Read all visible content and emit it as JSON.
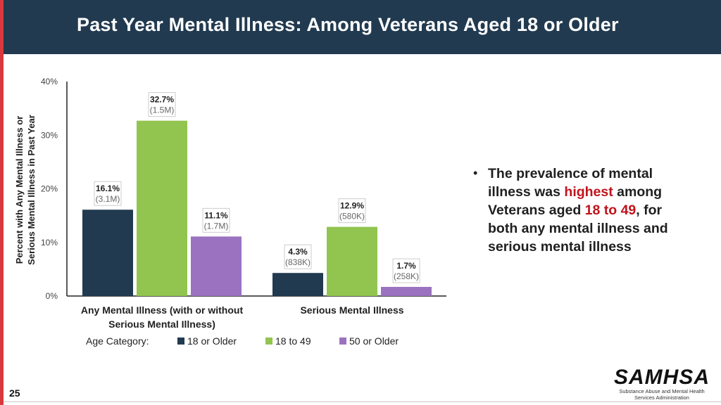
{
  "slide": {
    "title": "Past Year Mental Illness: Among Veterans Aged 18 or Older",
    "page_number": "25",
    "bullet": {
      "pre": "The prevalence of mental illness was ",
      "hl1": "highest",
      "mid": " among Veterans aged ",
      "hl2": "18 to 49",
      "post": ", for both any mental illness and serious mental illness"
    },
    "logo": {
      "mark": "SAMHSA",
      "line1": "Substance Abuse and Mental Health",
      "line2": "Services Administration"
    },
    "colors": {
      "header": "#213a50",
      "accent": "#d9393e",
      "highlight": "#c0141c"
    }
  },
  "chart_data": {
    "type": "bar",
    "title": "",
    "xlabel": "",
    "ylabel": "Percent with Any Mental Illness or Serious Mental Illness in Past Year",
    "ylabel_lines": [
      "Percent with Any Mental Illness or",
      "Serious Mental Illness in Past Year"
    ],
    "ylim": [
      0,
      40
    ],
    "yticks": [
      {
        "value": 0,
        "label": "0%"
      },
      {
        "value": 10,
        "label": "10%"
      },
      {
        "value": 20,
        "label": "20%"
      },
      {
        "value": 30,
        "label": "30%"
      },
      {
        "value": 40,
        "label": "40%"
      }
    ],
    "categories": [
      {
        "lines": [
          "Any Mental Illness (with or without",
          "Serious Mental Illness)"
        ]
      },
      {
        "lines": [
          "Serious Mental Illness"
        ]
      }
    ],
    "legend_title": "Age Category:",
    "series": [
      {
        "name": "18 or Older",
        "color": "#213a50",
        "values": [
          16.1,
          4.3
        ],
        "labels": [
          "16.1%",
          "4.3%"
        ],
        "counts": [
          "(3.1M)",
          "(838K)"
        ]
      },
      {
        "name": "18 to 49",
        "color": "#92c54f",
        "values": [
          32.7,
          12.9
        ],
        "labels": [
          "32.7%",
          "12.9%"
        ],
        "counts": [
          "(1.5M)",
          "(580K)"
        ]
      },
      {
        "name": "50 or Older",
        "color": "#9b72c0",
        "values": [
          11.1,
          1.7
        ],
        "labels": [
          "11.1%",
          "1.7%"
        ],
        "counts": [
          "(1.7M)",
          "(258K)"
        ]
      }
    ]
  }
}
